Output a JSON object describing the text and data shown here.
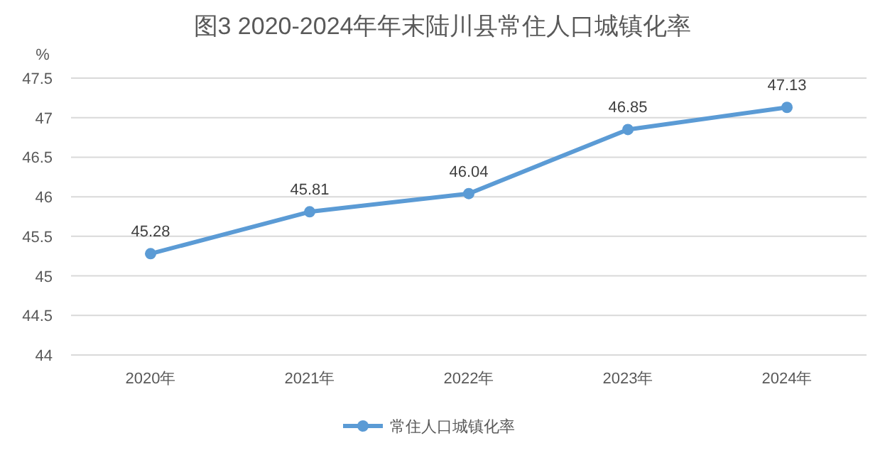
{
  "chart_data": {
    "type": "line",
    "title": "图3  2020-2024年年末陆川县常住人口城镇化率",
    "ylabel": "%",
    "categories": [
      "2020年",
      "2021年",
      "2022年",
      "2023年",
      "2024年"
    ],
    "series": [
      {
        "name": "常住人口城镇化率",
        "color": "#5b9bd5",
        "values": [
          45.28,
          45.81,
          46.04,
          46.85,
          47.13
        ]
      }
    ],
    "ylim": [
      44,
      47.5
    ],
    "yticks": [
      44,
      44.5,
      45,
      45.5,
      46,
      46.5,
      47,
      47.5
    ],
    "grid": "y",
    "legend": "bottom",
    "marker": "circle",
    "line_style": "solid",
    "data_labels": true
  }
}
